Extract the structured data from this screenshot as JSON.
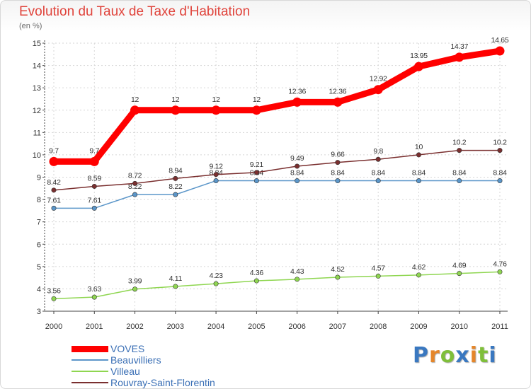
{
  "title": "Evolution du Taux de Taxe d'Habitation",
  "subtitle": "(en %)",
  "logo": {
    "text": "Proxiti",
    "colors": [
      "#3a78c0",
      "#e5862a",
      "#7fbf3a",
      "#3a78c0",
      "#e5862a",
      "#7fbf3a",
      "#3a78c0"
    ]
  },
  "chart_data": {
    "type": "line",
    "x": [
      "2000",
      "2001",
      "2002",
      "2003",
      "2004",
      "2005",
      "2006",
      "2007",
      "2008",
      "2009",
      "2010",
      "2011"
    ],
    "ylim": [
      3,
      15
    ],
    "yticks": [
      3,
      4,
      5,
      6,
      7,
      8,
      9,
      10,
      11,
      12,
      13,
      14,
      15
    ],
    "grid": true,
    "legend_position": "bottom-left",
    "series": [
      {
        "name": "VOVES",
        "color": "#ff0000",
        "thick": true,
        "values": [
          9.7,
          9.7,
          12,
          12,
          12,
          12,
          12.36,
          12.36,
          12.92,
          13.95,
          14.37,
          14.65
        ],
        "labels": [
          "9.7",
          "9.7",
          "12",
          "12",
          "12",
          "12",
          "12.36",
          "12.36",
          "12.92",
          "13.95",
          "14.37",
          "14.65"
        ]
      },
      {
        "name": "Beauvilliers",
        "color": "#5b96c9",
        "thick": false,
        "values": [
          7.61,
          7.61,
          8.22,
          8.22,
          8.84,
          8.84,
          8.84,
          8.84,
          8.84,
          8.84,
          8.84,
          8.84
        ],
        "labels": [
          "7.61",
          "7.61",
          "8.22",
          "8.22",
          "8.84",
          "8.84",
          "8.84",
          "8.84",
          "8.84",
          "8.84",
          "8.84",
          "8.84"
        ]
      },
      {
        "name": "Villeau",
        "color": "#8fd651",
        "thick": false,
        "values": [
          3.56,
          3.63,
          3.99,
          4.11,
          4.23,
          4.36,
          4.43,
          4.52,
          4.57,
          4.62,
          4.69,
          4.76
        ],
        "labels": [
          "3.56",
          "3.63",
          "3.99",
          "4.11",
          "4.23",
          "4.36",
          "4.43",
          "4.52",
          "4.57",
          "4.62",
          "4.69",
          "4.76"
        ]
      },
      {
        "name": "Rouvray-Saint-Florentin",
        "color": "#7a2f2f",
        "thick": false,
        "values": [
          8.42,
          8.59,
          8.72,
          8.94,
          9.12,
          9.21,
          9.49,
          9.66,
          9.8,
          10,
          10.2,
          10.2
        ],
        "labels": [
          "8.42",
          "8.59",
          "8.72",
          "8.94",
          "9.12",
          "9.21",
          "9.49",
          "9.66",
          "9.8",
          "10",
          "10.2",
          "10.2"
        ]
      }
    ]
  }
}
